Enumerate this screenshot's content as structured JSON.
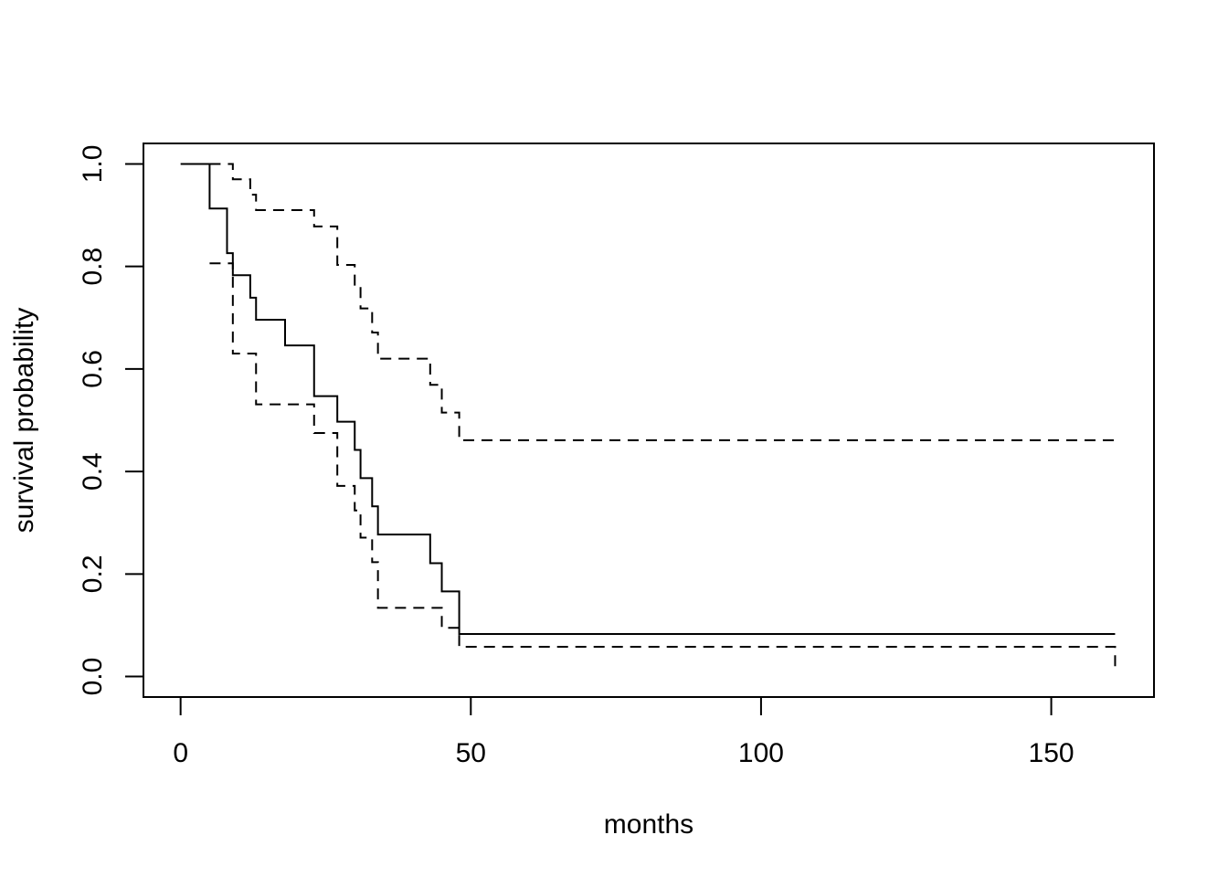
{
  "chart_data": {
    "type": "line",
    "title": "",
    "xlabel": "months",
    "ylabel": "survival probability",
    "xlim": [
      -6.4,
      167.7
    ],
    "ylim": [
      -0.04,
      1.04
    ],
    "xticks": [
      0,
      50,
      100,
      150
    ],
    "xtick_labels": [
      "0",
      "50",
      "100",
      "150"
    ],
    "yticks": [
      0.0,
      0.2,
      0.4,
      0.6,
      0.8,
      1.0
    ],
    "ytick_labels": [
      "0.0",
      "0.2",
      "0.4",
      "0.6",
      "0.8",
      "1.0"
    ],
    "grid": false,
    "legend": "none",
    "series": [
      {
        "role": "estimate",
        "style": "solid",
        "color": "#000000",
        "x": [
          0,
          5,
          8,
          9,
          12,
          13,
          18,
          23,
          27,
          30,
          31,
          33,
          34,
          43,
          45,
          48,
          161
        ],
        "y": [
          1.0,
          0.913,
          0.826,
          0.783,
          0.739,
          0.696,
          0.646,
          0.547,
          0.497,
          0.442,
          0.387,
          0.332,
          0.277,
          0.221,
          0.166,
          0.083,
          0.083
        ]
      },
      {
        "role": "upper",
        "style": "dashed",
        "color": "#000000",
        "x": [
          5,
          8,
          9,
          12,
          13,
          18,
          23,
          27,
          30,
          31,
          33,
          34,
          43,
          45,
          48,
          161
        ],
        "y": [
          1.0,
          1.0,
          0.97,
          0.94,
          0.91,
          0.91,
          0.878,
          0.803,
          0.762,
          0.718,
          0.671,
          0.62,
          0.569,
          0.515,
          0.461,
          0.461
        ]
      },
      {
        "role": "lower",
        "style": "dashed",
        "color": "#000000",
        "x": [
          5,
          8,
          9,
          12,
          13,
          18,
          23,
          27,
          30,
          31,
          33,
          34,
          43,
          45,
          48,
          161
        ],
        "y": [
          0.806,
          0.806,
          0.63,
          0.63,
          0.531,
          0.531,
          0.475,
          0.372,
          0.324,
          0.271,
          0.223,
          0.134,
          0.134,
          0.095,
          0.058,
          0.014
        ]
      }
    ]
  }
}
